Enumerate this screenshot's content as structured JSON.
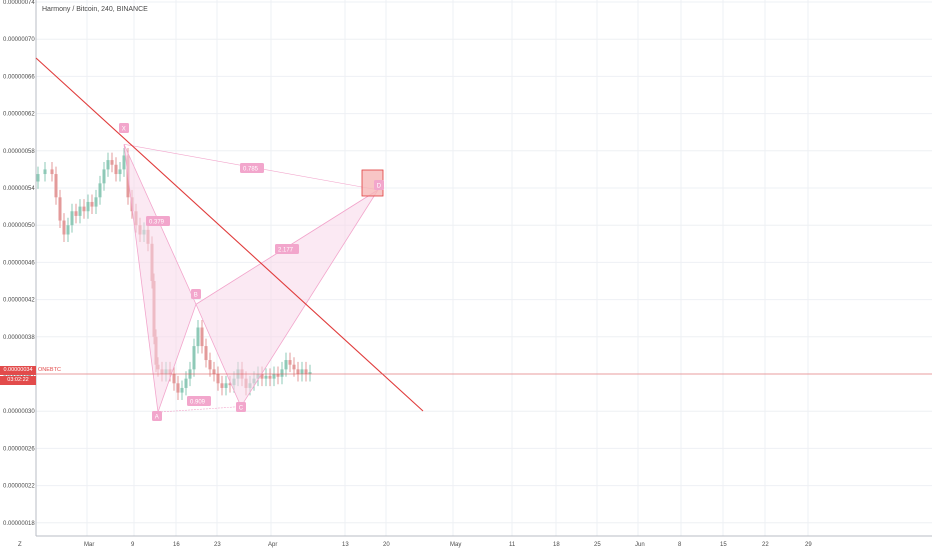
{
  "header": {
    "title": "Harmony / Bitcoin, 240, BINANCE"
  },
  "price_badge": {
    "value": "0.00000034",
    "countdown": "03:02:22",
    "symbol": "ONEBTC"
  },
  "bottom_left": {
    "label": "Z"
  },
  "colors": {
    "up_candle": "#8ec9b7",
    "down_candle": "#e39a9a",
    "trendline": "#e03c3c",
    "pattern_fill": "#f7d7ea",
    "pattern_stroke": "#f2a6cc",
    "label_bg": "#f2a6cc",
    "price_line": "#e24b4b"
  },
  "chart_data": {
    "type": "candlestick",
    "y_axis": {
      "range": [
        1.6e-07,
        7.4e-07
      ],
      "ticks": [
        "0.00000018",
        "0.00000022",
        "0.00000026",
        "0.00000030",
        "0.00000034",
        "0.00000038",
        "0.00000042",
        "0.00000046",
        "0.00000050",
        "0.00000054",
        "0.00000058",
        "0.00000062",
        "0.00000066",
        "0.00000070",
        "0.00000074"
      ]
    },
    "x_axis": {
      "ticks": [
        "Mar",
        "9",
        "16",
        "23",
        "Apr",
        "13",
        "20",
        "May",
        "11",
        "18",
        "25",
        "Jun",
        "8",
        "15",
        "22",
        "29"
      ]
    },
    "pattern_points": [
      {
        "label": "X",
        "price": 5.87e-07
      },
      {
        "label": "A",
        "price": 2.99e-07
      },
      {
        "label": "B",
        "price": 4.15e-07
      },
      {
        "label": "C",
        "price": 3.05e-07
      },
      {
        "label": "D",
        "price": 5.38e-07
      }
    ],
    "ratios": [
      "0.785",
      "0.379",
      "0.909",
      "2.177"
    ],
    "current_price": 3.4e-07
  }
}
